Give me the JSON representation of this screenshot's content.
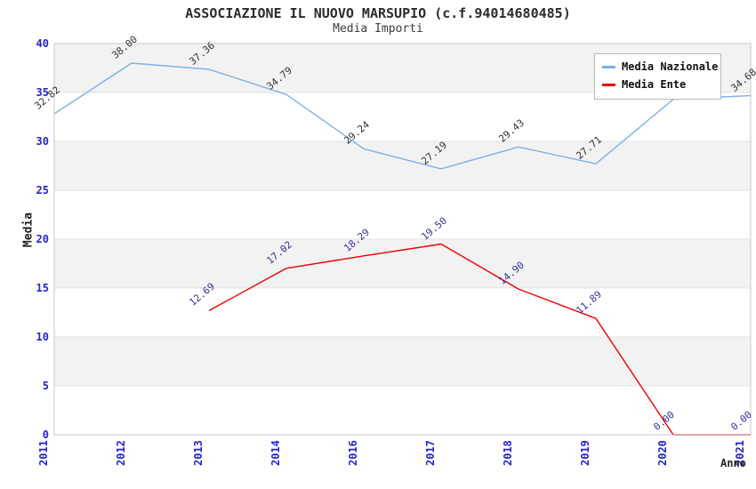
{
  "title": "ASSOCIAZIONE IL NUOVO MARSUPIO (c.f.94014680485)",
  "subtitle": "Media Importi",
  "colors": {
    "tick_text": "#2323cb",
    "band_gray": "#f2f2f2",
    "band_edge": "#e3e3e3",
    "plot_border": "#c9c9c9",
    "national_line": "#7db1e8",
    "entity_line": "#ee0000",
    "national_label_text": "#333333",
    "entity_label_text": "#333399"
  },
  "chart_data": {
    "type": "line",
    "title": "ASSOCIAZIONE IL NUOVO MARSUPIO (c.f.94014680485)",
    "subtitle": "Media Importi",
    "xlabel": "Anno",
    "ylabel": "Media",
    "categories": [
      "2011",
      "2012",
      "2013",
      "2014",
      "2016",
      "2017",
      "2018",
      "2019",
      "2020",
      "2021"
    ],
    "ylim": [
      0,
      40
    ],
    "yticks": [
      0,
      5,
      10,
      15,
      20,
      25,
      30,
      35,
      40
    ],
    "grid": "alternating horizontal bands every 5 units, gray/white",
    "legend_position": "top-right",
    "series": [
      {
        "name": "Media Nazionale",
        "color": "#7db1e8",
        "label_color": "#333333",
        "values": [
          32.82,
          38.0,
          37.36,
          34.79,
          29.24,
          27.19,
          29.43,
          27.71,
          34.3,
          34.68
        ],
        "point_labels": [
          "32.82",
          "38.00",
          "37.36",
          "34.79",
          "29.24",
          "27.19",
          "29.43",
          "27.71",
          "",
          "34.68"
        ]
      },
      {
        "name": "Media Ente",
        "color": "#ee0000",
        "label_color": "#333399",
        "values": [
          null,
          null,
          12.69,
          17.02,
          18.29,
          19.5,
          14.9,
          11.89,
          0.0,
          0.0
        ],
        "point_labels": [
          "",
          "",
          "12.69",
          "17.02",
          "18.29",
          "19.50",
          "14.90",
          "11.89",
          "0.00",
          "0.00"
        ]
      }
    ]
  }
}
